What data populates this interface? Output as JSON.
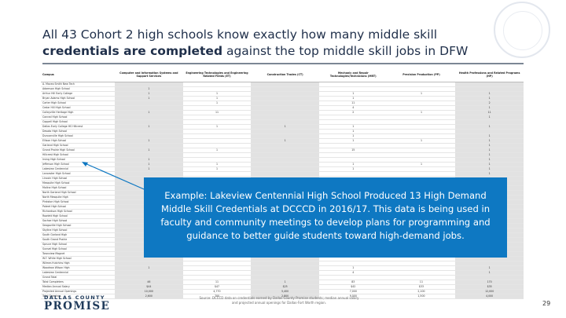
{
  "title": {
    "part1": "All 43 Cohort 2 high schools know exactly how many middle skill",
    "part2_bold": "credentials are completed",
    "part3": " against the top middle skill jobs in DFW"
  },
  "table": {
    "headers": [
      "Campus",
      "Computer and Information Systems and Support Services",
      "Engineering Technologies and Engineering Related Fields (ET)",
      "Construction Trades (CT)",
      "Mechanic and Repair Technologies/Technicians (MRT)",
      "Precision Production (PP)",
      "Health Professions and Related Programs (HP)"
    ],
    "rows": [
      [
        "A. Maceo Smith New Tech",
        "",
        "",
        "",
        "",
        "",
        ""
      ],
      [
        "Adamson High School",
        "1",
        "",
        "",
        "",
        "",
        ""
      ],
      [
        "Arthur Hill Early College",
        "1",
        "1",
        "",
        "1",
        "1",
        "1"
      ],
      [
        "Bryan Adams High School",
        "1",
        "1",
        "",
        "1",
        "",
        "1"
      ],
      [
        "Carter High School",
        "",
        "1",
        "",
        "11",
        "",
        "2"
      ],
      [
        "Cedar Hill High School",
        "",
        "",
        "",
        "4",
        "",
        "1"
      ],
      [
        "Colleyville Heritage High",
        "1",
        "11",
        "",
        "2",
        "1",
        "11"
      ],
      [
        "Conrad High School",
        "",
        "",
        "",
        "",
        "",
        "1"
      ],
      [
        "Coppell High School",
        "",
        "",
        "",
        "",
        "",
        ""
      ],
      [
        "Dallas Early College HS Hillcrest",
        "1",
        "1",
        "1",
        "1",
        "",
        "1"
      ],
      [
        "Desoto High School",
        "",
        "",
        "",
        "1",
        "",
        ""
      ],
      [
        "Duncanville High School",
        "",
        "",
        "",
        "1",
        "",
        "1"
      ],
      [
        "Ellison High School",
        "1",
        "",
        "1",
        "1",
        "1",
        "1"
      ],
      [
        "Garland High School",
        "",
        "",
        "",
        "",
        "",
        "1"
      ],
      [
        "Grand Prairie High School",
        "1",
        "1",
        "",
        "15",
        "",
        "1"
      ],
      [
        "Hillcrest High School",
        "",
        "",
        "",
        "",
        "",
        "1"
      ],
      [
        "Irving High School",
        "1",
        "",
        "",
        "",
        "",
        "1"
      ],
      [
        "Jefferson High School",
        "1",
        "1",
        "",
        "1",
        "1",
        "1"
      ],
      [
        "Lakeview Centennial",
        "1",
        "1",
        "",
        "1",
        "",
        "1"
      ],
      [
        "Lancaster High School",
        "",
        "",
        "",
        "",
        "",
        "1"
      ],
      [
        "Lincoln High School",
        "",
        "",
        "",
        "",
        "",
        ""
      ],
      [
        "Mesquite High School",
        "",
        "",
        "",
        "",
        "",
        ""
      ],
      [
        "Molina High School",
        "",
        "",
        "",
        "",
        "",
        ""
      ],
      [
        "North Garland High School",
        "",
        "",
        "",
        "",
        "",
        ""
      ],
      [
        "North Mesquite High",
        "",
        "",
        "",
        "",
        "",
        ""
      ],
      [
        "Pinkston High School",
        "",
        "",
        "",
        "",
        "",
        ""
      ],
      [
        "Poteet High School",
        "",
        "",
        "",
        "",
        "",
        ""
      ],
      [
        "Richardson High School",
        "",
        "",
        "",
        "",
        "",
        ""
      ],
      [
        "Rowlett High School",
        "",
        "",
        "",
        "",
        "",
        ""
      ],
      [
        "Sachse High School",
        "",
        "",
        "",
        "",
        "",
        ""
      ],
      [
        "Seagoville High School",
        "",
        "",
        "",
        "",
        "",
        ""
      ],
      [
        "Skyline High School",
        "",
        "",
        "",
        "",
        "",
        ""
      ],
      [
        "South Garland High",
        "",
        "",
        "",
        "",
        "",
        ""
      ],
      [
        "South Grand Prairie",
        "",
        "",
        "",
        "",
        "",
        ""
      ],
      [
        "Spruce High School",
        "",
        "",
        "",
        "",
        "",
        ""
      ],
      [
        "Sunset High School",
        "",
        "",
        "",
        "",
        "",
        ""
      ],
      [
        "Townview Magnet",
        "",
        "",
        "",
        "",
        "",
        ""
      ],
      [
        "W.T. White High School",
        "",
        "",
        "",
        "",
        "",
        ""
      ],
      [
        "Wilmer-Hutchins High",
        "",
        "",
        "",
        "",
        "",
        ""
      ],
      [
        "Woodrow Wilson High",
        "1",
        "",
        "",
        "1",
        "",
        "1"
      ],
      [
        "Lakeview Centennial",
        "",
        "",
        "",
        "4",
        "",
        "1"
      ],
      [
        "Grand Total",
        "",
        "",
        "",
        "",
        "",
        ""
      ],
      [
        "Total Completers",
        "46",
        "11",
        "1",
        "83",
        "11",
        "170"
      ],
      [
        "Median Annual Salary",
        "$44",
        "$47",
        "$25",
        "$42",
        "$33",
        "$35"
      ],
      [
        "Projected Annual Openings",
        "10,000",
        "4,770",
        "5,400",
        "7,000",
        "2,100",
        "12,000"
      ],
      [
        "Total Openings",
        "2,600",
        "700",
        "2,800",
        "9,000",
        "1,500",
        "4,000"
      ]
    ]
  },
  "callout": {
    "text": "Example: Lakeview Centennial High School Produced 13 High Demand Middle Skill Credentials at DCCCD in 2016/17. This data is being used in faculty and community meetings to develop plans for programming and guidance to better guide students toward high-demand jobs."
  },
  "footer": {
    "logo_small": "DALLAS COUNTY",
    "logo_big": "PROMISE",
    "footnote": "Source: DCCCD data on credentials earned by Dallas County Promise students; median annual salary and projected annual openings for Dallas-Fort Worth region.",
    "page_number": "29"
  }
}
